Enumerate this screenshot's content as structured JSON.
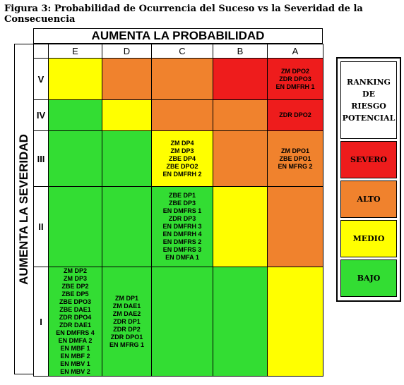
{
  "figure_title": "Figura 3: Probabilidad de Ocurrencia del Suceso vs la Severidad de la Consecuencia",
  "probability_header": "AUMENTA LA PROBABILIDAD",
  "severity_header": "AUMENTA LA SEVERIDAD",
  "columns": [
    "E",
    "D",
    "C",
    "B",
    "A"
  ],
  "rows": [
    {
      "label": "V",
      "colors": [
        "#ffff00",
        "#f0822d",
        "#f0822d",
        "#ee1c1c",
        "#ee1c1c"
      ],
      "cells": [
        "",
        "",
        "",
        "",
        "ZM DPO2\nZDR DPO3\nEN DMFRH 1"
      ]
    },
    {
      "label": "IV",
      "colors": [
        "#33dd33",
        "#ffff00",
        "#f0822d",
        "#f0822d",
        "#ee1c1c"
      ],
      "cells": [
        "",
        "",
        "",
        "",
        "ZDR DPO2"
      ]
    },
    {
      "label": "III",
      "colors": [
        "#33dd33",
        "#33dd33",
        "#ffff00",
        "#f0822d",
        "#f0822d"
      ],
      "cells": [
        "",
        "",
        "ZM DP4\nZM DP3\nZBE DP4\nZBE DPO2\nEN DMFRH 2",
        "",
        "ZM DPO1\nZBE DPO1\nEN MFRG  2"
      ]
    },
    {
      "label": "II",
      "colors": [
        "#33dd33",
        "#33dd33",
        "#33dd33",
        "#ffff00",
        "#f0822d"
      ],
      "cells": [
        "",
        "",
        "ZBE DP1\nZBE DP3\nEN DMFRS 1\nZDR DP3\nEN DMFRH 3\nEN DMFRH 4\nEN DMFRS 2\nEN DMFRS 3\nEN DMFA 1",
        "",
        ""
      ]
    },
    {
      "label": "I",
      "colors": [
        "#33dd33",
        "#33dd33",
        "#33dd33",
        "#33dd33",
        "#ffff00"
      ],
      "cells": [
        "ZM DP2\nZM DP3\nZBE DP2\nZBE DP5\nZBE DPO3\nZBE DAE1\nZDR DPO4\nZDR DAE1\nEN DMFRS 4\nEN DMFA 2\nEN MBF 1\nEN MBF 2\nEN MBV 1\nEN MBV 2",
        "ZM DP1\nZM DAE1\nZM DAE2\nZDR DP1\nZDR DP2\nZDR DPO1\nEN MFRG 1",
        "",
        "",
        ""
      ]
    }
  ],
  "legend": {
    "title": "RANKING DE\nRIESGO\nPOTENCIAL",
    "levels": [
      {
        "label": "SEVERO",
        "color": "#ee1c1c"
      },
      {
        "label": "ALTO",
        "color": "#f0822d"
      },
      {
        "label": "MEDIO",
        "color": "#ffff00"
      },
      {
        "label": "BAJO",
        "color": "#33dd33"
      }
    ]
  }
}
